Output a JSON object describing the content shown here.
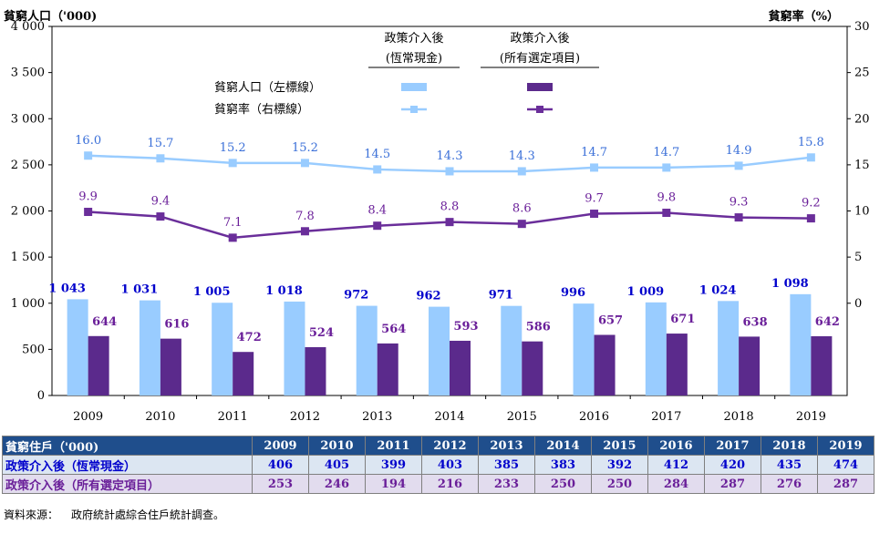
{
  "chart_data": {
    "type": "bar+line",
    "categories": [
      "2009",
      "2010",
      "2011",
      "2012",
      "2013",
      "2014",
      "2015",
      "2016",
      "2017",
      "2018",
      "2019"
    ],
    "y_left": {
      "label": "貧窮人口（'000)",
      "lim": [
        0,
        4000
      ],
      "ticks": [
        "0",
        "500",
        "1 000",
        "1 500",
        "2 000",
        "2 500",
        "3 000",
        "3 500",
        "4 000"
      ],
      "tick_values": [
        0,
        500,
        1000,
        1500,
        2000,
        2500,
        3000,
        3500,
        4000
      ]
    },
    "y_right": {
      "label": "貧窮率（%）",
      "lim": [
        -10,
        30
      ],
      "ticks": [
        "0",
        "5",
        "10",
        "15",
        "20",
        "25",
        "30"
      ],
      "tick_values": [
        0,
        5,
        10,
        15,
        20,
        25,
        30
      ]
    },
    "legend": {
      "col1": "政策介入後",
      "col1b": "(恆常現金)",
      "col2": "政策介入後",
      "col2b": "(所有選定項目)",
      "row1": "貧窮人口（左標線）",
      "row2": "貧窮率（右標線）"
    },
    "bars": [
      {
        "name": "貧窮人口 政策介入後(恆常現金)",
        "color": "#99ccff",
        "values": [
          1043,
          1031,
          1005,
          1018,
          972,
          962,
          971,
          996,
          1009,
          1024,
          1098
        ],
        "labels": [
          "1 043",
          "1 031",
          "1 005",
          "1 018",
          "972",
          "962",
          "971",
          "996",
          "1 009",
          "1 024",
          "1 098"
        ],
        "label_color": "#0000cc"
      },
      {
        "name": "貧窮人口 政策介入後(所有選定項目)",
        "color": "#5b2a8c",
        "values": [
          644,
          616,
          472,
          524,
          564,
          593,
          586,
          657,
          671,
          638,
          642
        ],
        "labels": [
          "644",
          "616",
          "472",
          "524",
          "564",
          "593",
          "586",
          "657",
          "671",
          "638",
          "642"
        ],
        "label_color": "#6a1f99"
      }
    ],
    "lines": [
      {
        "name": "貧窮率 政策介入後(恆常現金)",
        "color": "#99ccff",
        "label_color": "#3a6fd8",
        "values": [
          16.0,
          15.7,
          15.2,
          15.2,
          14.5,
          14.3,
          14.3,
          14.7,
          14.7,
          14.9,
          15.8
        ],
        "labels": [
          "16.0",
          "15.7",
          "15.2",
          "15.2",
          "14.5",
          "14.3",
          "14.3",
          "14.7",
          "14.7",
          "14.9",
          "15.8"
        ]
      },
      {
        "name": "貧窮率 政策介入後(所有選定項目)",
        "color": "#6a2e9a",
        "label_color": "#6a1f99",
        "values": [
          9.9,
          9.4,
          7.1,
          7.8,
          8.4,
          8.8,
          8.6,
          9.7,
          9.8,
          9.3,
          9.2
        ],
        "labels": [
          "9.9",
          "9.4",
          "7.1",
          "7.8",
          "8.4",
          "8.8",
          "8.6",
          "9.7",
          "9.8",
          "9.3",
          "9.2"
        ]
      }
    ]
  },
  "table": {
    "header": "貧窮住戶（'000)",
    "years": [
      "2009",
      "2010",
      "2011",
      "2012",
      "2013",
      "2014",
      "2015",
      "2016",
      "2017",
      "2018",
      "2019"
    ],
    "rows": [
      {
        "label": "政策介入後（恆常現金）",
        "values": [
          "406",
          "405",
          "399",
          "403",
          "385",
          "383",
          "392",
          "412",
          "420",
          "435",
          "474"
        ]
      },
      {
        "label": "政策介入後（所有選定項目）",
        "values": [
          "253",
          "246",
          "194",
          "216",
          "233",
          "250",
          "250",
          "284",
          "287",
          "276",
          "287"
        ]
      }
    ]
  },
  "source": {
    "label": "資料來源：",
    "text": "政府統計處綜合住戶統計調查。"
  }
}
